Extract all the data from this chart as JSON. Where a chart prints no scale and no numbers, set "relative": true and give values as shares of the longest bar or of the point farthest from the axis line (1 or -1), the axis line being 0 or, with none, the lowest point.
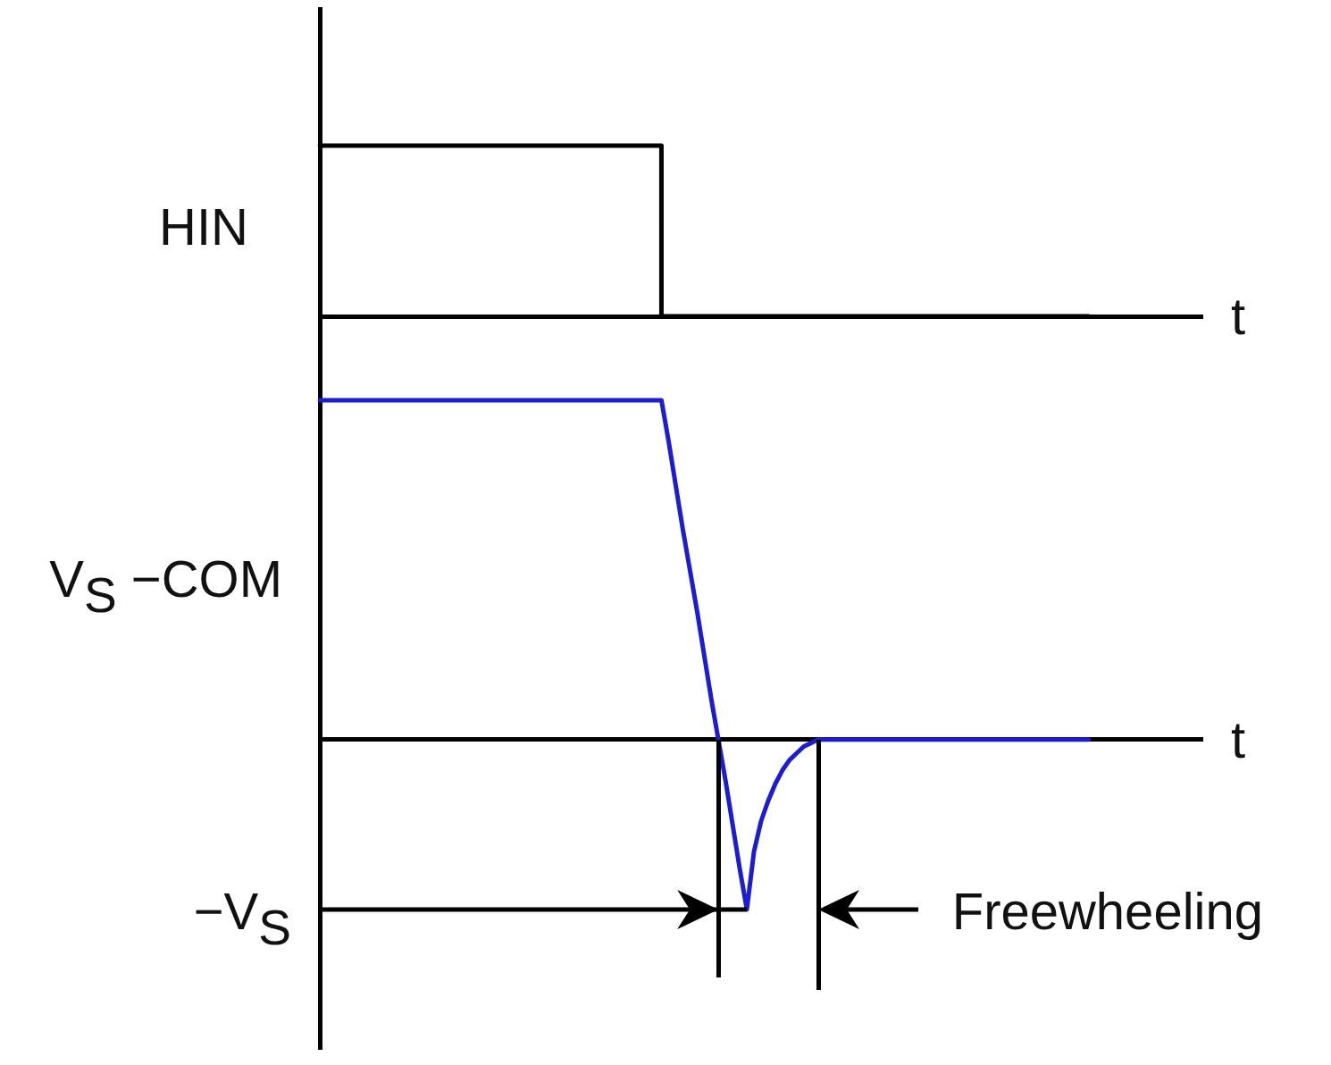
{
  "chart_data": [
    {
      "type": "step",
      "ylabel": "HIN",
      "xlabel": "t",
      "relative": true,
      "categories": [
        null,
        null,
        null,
        null,
        null,
        null,
        null,
        null,
        null,
        null,
        null,
        null,
        null,
        null,
        null,
        null,
        null,
        null,
        null,
        null,
        null,
        null,
        null,
        null,
        null,
        null,
        null,
        null,
        null,
        null,
        null,
        null,
        null,
        null,
        null,
        null,
        null,
        null,
        null,
        null,
        null,
        null,
        null,
        null,
        null,
        null,
        null,
        null,
        null,
        null,
        null,
        null,
        null,
        null,
        null,
        null,
        null,
        null,
        null,
        null,
        null,
        null,
        null,
        null,
        null,
        null,
        null,
        null,
        null,
        null,
        null,
        null,
        null,
        null,
        null,
        null,
        null,
        null,
        null,
        null,
        null,
        null,
        null,
        null,
        null,
        null,
        null,
        null,
        null,
        null,
        null,
        null,
        null,
        null,
        null,
        null,
        null,
        null,
        null,
        null,
        null,
        null,
        null,
        null,
        null,
        null,
        null,
        null,
        null,
        null,
        null,
        null,
        null,
        null,
        null,
        null,
        null,
        null,
        null,
        null,
        null,
        null,
        null,
        null,
        null
      ],
      "series": [
        {
          "color": "#000000",
          "values": [
            1,
            1,
            1,
            1,
            1,
            1,
            1,
            1,
            1,
            1,
            1,
            1,
            1,
            1,
            1,
            1,
            1,
            1,
            1,
            1,
            1,
            1,
            1,
            1,
            1,
            1,
            1,
            1,
            1,
            1,
            1,
            1,
            1,
            1,
            1,
            1,
            1,
            1,
            1,
            1,
            1,
            1,
            1,
            1,
            1,
            1,
            1,
            1,
            0,
            0,
            0,
            0,
            0,
            0,
            0,
            0,
            0,
            0,
            0,
            0,
            0,
            0,
            0,
            0,
            0,
            0,
            0,
            0,
            0,
            0,
            0,
            0,
            0,
            0,
            0,
            0,
            0,
            0,
            0,
            0,
            0,
            0,
            0,
            0,
            0,
            0,
            0,
            0,
            0,
            0,
            0,
            0,
            0,
            0,
            0,
            0,
            0,
            0,
            0,
            0,
            0,
            0,
            0,
            0,
            0,
            0,
            0,
            0,
            0,
            null,
            null,
            null,
            null,
            null,
            null,
            null,
            null,
            null,
            null,
            null,
            null,
            null,
            null,
            null,
            null
          ]
        }
      ]
    },
    {
      "type": "line",
      "ylabel": "V$_{S}$ −COM",
      "xlabel": "t",
      "relative": true,
      "categories": [
        null,
        null,
        null,
        null,
        null,
        null,
        null,
        null,
        null,
        null,
        null,
        null,
        null,
        null,
        null,
        null,
        null,
        null,
        null,
        null,
        null,
        null,
        null,
        null,
        null,
        null,
        null,
        null,
        null,
        null,
        null,
        null,
        null,
        null,
        null,
        null,
        null,
        null,
        null,
        null,
        null,
        null,
        null,
        null,
        null,
        null,
        null,
        null,
        null,
        null,
        null,
        null,
        null,
        null,
        null,
        null,
        null,
        null,
        null,
        null,
        null,
        null,
        null,
        null,
        null,
        null,
        null,
        null,
        null,
        null,
        null,
        null,
        null,
        null,
        null,
        null,
        null,
        null,
        null,
        null,
        null,
        null,
        null,
        null,
        null,
        null,
        null,
        null,
        null,
        null,
        null,
        null,
        null,
        null,
        null,
        null,
        null,
        null,
        null,
        null,
        null,
        null,
        null,
        null,
        null,
        null,
        null,
        null,
        null,
        null,
        null,
        null,
        null,
        null,
        null,
        null,
        null,
        null,
        null,
        null,
        null,
        null,
        null,
        null,
        null
      ],
      "series": [
        {
          "color": "#1c1cd4",
          "values": [
            1,
            1,
            1,
            1,
            1,
            1,
            1,
            1,
            1,
            1,
            1,
            1,
            1,
            1,
            1,
            1,
            1,
            1,
            1,
            1,
            1,
            1,
            1,
            1,
            1,
            1,
            1,
            1,
            1,
            1,
            1,
            1,
            1,
            1,
            1,
            1,
            1,
            1,
            1,
            1,
            1,
            1,
            1,
            1,
            1,
            1,
            1,
            1,
            1,
            0.88,
            0.75,
            0.62,
            0.5,
            0.38,
            0.25,
            0.12,
            0,
            -0.12,
            -0.25,
            -0.38,
            -0.5,
            -0.33,
            -0.24,
            -0.18,
            -0.13,
            -0.09,
            -0.06,
            -0.04,
            -0.02,
            -0.01,
            0,
            0,
            0,
            0,
            0,
            0,
            0,
            0,
            0,
            0,
            0,
            0,
            0,
            0,
            0,
            0,
            0,
            0,
            0,
            0,
            0,
            0,
            0,
            0,
            0,
            0,
            0,
            0,
            0,
            0,
            0,
            0,
            0,
            0,
            0,
            0,
            0,
            0,
            0,
            null,
            null,
            null,
            null,
            null,
            null,
            null,
            null,
            null,
            null,
            null,
            null,
            null,
            null,
            null,
            null
          ]
        }
      ],
      "annotations": [
        "−V$_{S}$",
        "Freewheeling"
      ]
    }
  ]
}
